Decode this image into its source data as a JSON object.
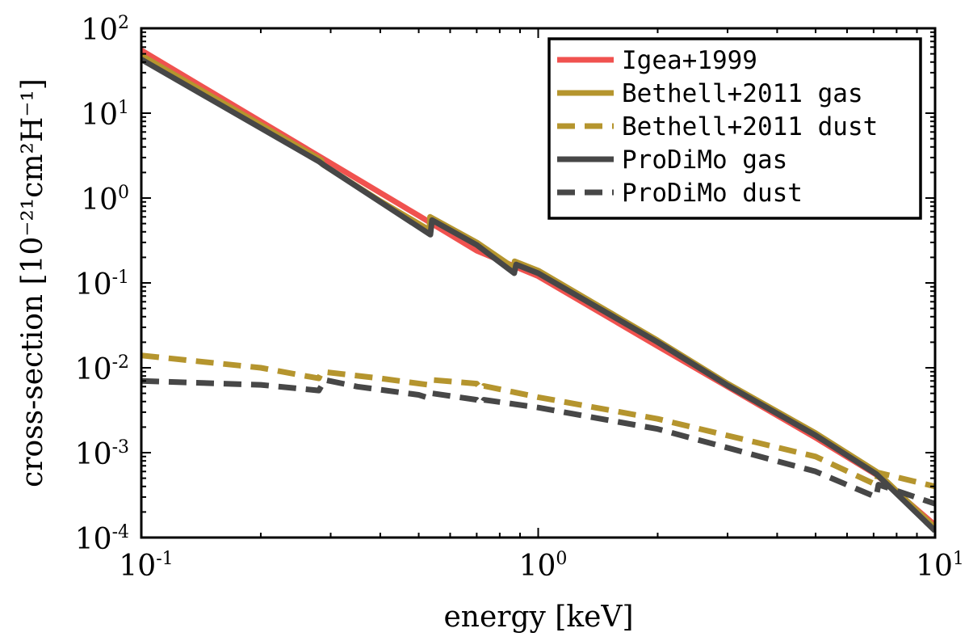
{
  "chart_data": {
    "type": "line",
    "xscale": "log",
    "yscale": "log",
    "xlabel": "energy [keV]",
    "ylabel": "cross-section [10⁻²¹cm²H⁻¹]",
    "xlim": [
      0.1,
      10
    ],
    "ylim": [
      0.0001,
      100
    ],
    "legend_position": "top-right",
    "x_ticks": [
      {
        "value": 0.1,
        "base": "10",
        "exp": "-1"
      },
      {
        "value": 1,
        "base": "10",
        "exp": "0"
      },
      {
        "value": 10,
        "base": "10",
        "exp": "1"
      }
    ],
    "y_ticks": [
      {
        "value": 0.0001,
        "base": "10",
        "exp": "-4"
      },
      {
        "value": 0.001,
        "base": "10",
        "exp": "-3"
      },
      {
        "value": 0.01,
        "base": "10",
        "exp": "-2"
      },
      {
        "value": 0.1,
        "base": "10",
        "exp": "-1"
      },
      {
        "value": 1,
        "base": "10",
        "exp": "0"
      },
      {
        "value": 10,
        "base": "10",
        "exp": "1"
      },
      {
        "value": 100,
        "base": "10",
        "exp": "2"
      }
    ],
    "series": [
      {
        "name": "Igea+1999",
        "color": "#f0524f",
        "style": "solid",
        "points": [
          [
            0.1,
            55
          ],
          [
            0.284,
            3.0
          ],
          [
            0.5,
            0.62
          ],
          [
            0.7,
            0.24
          ],
          [
            1.0,
            0.12
          ],
          [
            2.0,
            0.018
          ],
          [
            5.0,
            0.0015
          ],
          [
            7.11,
            0.00055
          ],
          [
            10,
            0.00014
          ]
        ]
      },
      {
        "name": "Bethell+2011 gas",
        "color": "#b5952e",
        "style": "solid",
        "points": [
          [
            0.1,
            48
          ],
          [
            0.284,
            2.8
          ],
          [
            0.286,
            2.5
          ],
          [
            0.4,
            0.92
          ],
          [
            0.532,
            0.42
          ],
          [
            0.534,
            0.6
          ],
          [
            0.7,
            0.3
          ],
          [
            0.87,
            0.15
          ],
          [
            0.872,
            0.18
          ],
          [
            1.0,
            0.14
          ],
          [
            2.0,
            0.021
          ],
          [
            3.0,
            0.0065
          ],
          [
            5.0,
            0.0017
          ],
          [
            7.11,
            0.0006
          ],
          [
            10,
            0.00013
          ]
        ]
      },
      {
        "name": "Bethell+2011 dust",
        "color": "#b5952e",
        "style": "dashed",
        "points": [
          [
            0.1,
            0.014
          ],
          [
            0.2,
            0.01
          ],
          [
            0.28,
            0.0075
          ],
          [
            0.285,
            0.009
          ],
          [
            0.4,
            0.0075
          ],
          [
            0.53,
            0.0063
          ],
          [
            0.54,
            0.0072
          ],
          [
            0.7,
            0.0065
          ],
          [
            0.72,
            0.0055
          ],
          [
            0.73,
            0.0061
          ],
          [
            1.0,
            0.0045
          ],
          [
            2.0,
            0.0025
          ],
          [
            5.0,
            0.0009
          ],
          [
            7.1,
            0.00042
          ],
          [
            7.2,
            0.00058
          ],
          [
            10,
            0.0004
          ]
        ]
      },
      {
        "name": "ProDiMo gas",
        "color": "#474747",
        "style": "solid",
        "points": [
          [
            0.1,
            43
          ],
          [
            0.28,
            2.7
          ],
          [
            0.29,
            2.4
          ],
          [
            0.4,
            0.9
          ],
          [
            0.535,
            0.37
          ],
          [
            0.54,
            0.55
          ],
          [
            0.7,
            0.28
          ],
          [
            0.87,
            0.13
          ],
          [
            0.88,
            0.165
          ],
          [
            1.0,
            0.13
          ],
          [
            2.0,
            0.02
          ],
          [
            3.0,
            0.0062
          ],
          [
            5.0,
            0.0016
          ],
          [
            7.11,
            0.00056
          ],
          [
            10,
            0.00012
          ]
        ]
      },
      {
        "name": "ProDiMo dust",
        "color": "#474747",
        "style": "dashed",
        "points": [
          [
            0.1,
            0.007
          ],
          [
            0.2,
            0.0063
          ],
          [
            0.28,
            0.0054
          ],
          [
            0.29,
            0.0072
          ],
          [
            0.35,
            0.006
          ],
          [
            0.5,
            0.0048
          ],
          [
            0.53,
            0.0044
          ],
          [
            0.54,
            0.005
          ],
          [
            0.7,
            0.0042
          ],
          [
            0.72,
            0.0037
          ],
          [
            0.73,
            0.0042
          ],
          [
            1.0,
            0.0034
          ],
          [
            2.0,
            0.0019
          ],
          [
            5.0,
            0.0006
          ],
          [
            7.1,
            0.0003
          ],
          [
            7.2,
            0.00042
          ],
          [
            10,
            0.00025
          ]
        ]
      }
    ]
  }
}
